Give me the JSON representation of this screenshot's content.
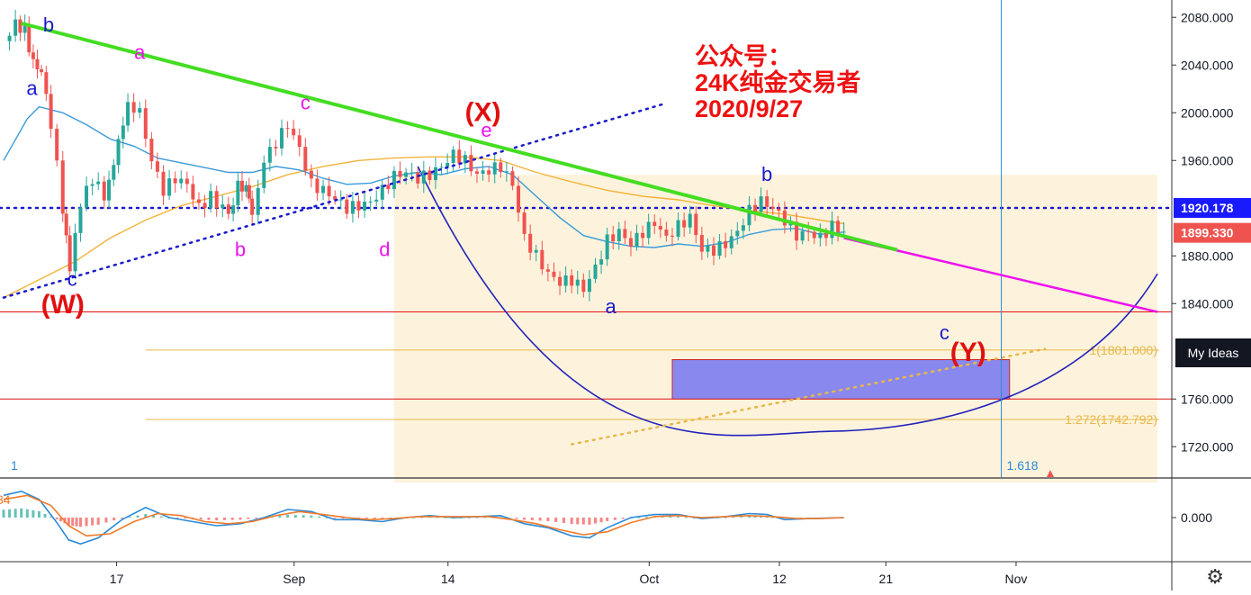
{
  "chart_data": {
    "type": "candlestick",
    "price_axis": {
      "ylim": [
        1690,
        2090
      ],
      "ticks": [
        {
          "value": 2080,
          "label": "2080.000"
        },
        {
          "value": 2040,
          "label": "2040.000"
        },
        {
          "value": 2000,
          "label": "2000.000"
        },
        {
          "value": 1960,
          "label": "1960.000"
        },
        {
          "value": 1880,
          "label": "1880.000"
        },
        {
          "value": 1840,
          "label": "1840.000"
        },
        {
          "value": 1760,
          "label": "1760.000"
        },
        {
          "value": 1720,
          "label": "1720.000"
        }
      ]
    },
    "time_axis": {
      "ticks": [
        {
          "label": "17",
          "day": 8
        },
        {
          "label": "Sep",
          "day": 23
        },
        {
          "label": "14",
          "day": 36
        },
        {
          "label": "Oct",
          "day": 53
        },
        {
          "label": "12",
          "day": 64
        },
        {
          "label": "21",
          "day": 73
        },
        {
          "label": "Nov",
          "day": 84
        }
      ]
    },
    "badges": [
      {
        "value": 1920.178,
        "label": "1920.178",
        "color": "#1a1aff"
      },
      {
        "value": 1899.33,
        "label": "1899.330",
        "color": "#ef5350"
      }
    ],
    "close_points": [
      [
        0,
        2060
      ],
      [
        1,
        2074
      ],
      [
        1.8,
        2070
      ],
      [
        2.5,
        2040
      ],
      [
        3.2,
        2032
      ],
      [
        4,
        1990
      ],
      [
        5,
        1920
      ],
      [
        5.6,
        1868
      ],
      [
        6.5,
        1925
      ],
      [
        7.5,
        1945
      ],
      [
        8.5,
        1930
      ],
      [
        9.3,
        1955
      ],
      [
        10.5,
        2010
      ],
      [
        11.5,
        2000
      ],
      [
        12.5,
        1960
      ],
      [
        13.5,
        1935
      ],
      [
        14.5,
        1945
      ],
      [
        15.5,
        1940
      ],
      [
        16.5,
        1920
      ],
      [
        17.5,
        1930
      ],
      [
        19,
        1915
      ],
      [
        19.8,
        1938
      ],
      [
        20.5,
        1935
      ],
      [
        21,
        1915
      ],
      [
        22,
        1960
      ],
      [
        23,
        1975
      ],
      [
        24,
        1990
      ],
      [
        25,
        1970
      ],
      [
        26,
        1940
      ],
      [
        27,
        1935
      ],
      [
        28,
        1928
      ],
      [
        29,
        1920
      ],
      [
        30,
        1922
      ],
      [
        31,
        1925
      ],
      [
        32,
        1935
      ],
      [
        33,
        1947
      ],
      [
        34,
        1950
      ],
      [
        35,
        1945
      ],
      [
        36,
        1948
      ],
      [
        37,
        1955
      ],
      [
        38,
        1965
      ],
      [
        39,
        1960
      ],
      [
        40,
        1948
      ],
      [
        41,
        1952
      ],
      [
        42,
        1955
      ],
      [
        43,
        1940
      ],
      [
        44,
        1895
      ],
      [
        45,
        1880
      ],
      [
        46,
        1865
      ],
      [
        47,
        1858
      ],
      [
        48,
        1860
      ],
      [
        49,
        1852
      ],
      [
        50,
        1870
      ],
      [
        51,
        1893
      ],
      [
        52,
        1900
      ],
      [
        53,
        1890
      ],
      [
        54,
        1900
      ],
      [
        55,
        1908
      ],
      [
        56,
        1895
      ],
      [
        57,
        1905
      ],
      [
        58,
        1912
      ],
      [
        59,
        1885
      ],
      [
        60,
        1885
      ],
      [
        61,
        1890
      ],
      [
        62,
        1900
      ],
      [
        63,
        1918
      ],
      [
        64,
        1926
      ],
      [
        65,
        1920
      ],
      [
        66,
        1910
      ],
      [
        67,
        1897
      ],
      [
        68,
        1900
      ],
      [
        69,
        1895
      ],
      [
        70,
        1905
      ],
      [
        71,
        1900
      ]
    ],
    "ma_blue": [
      [
        0,
        1960
      ],
      [
        2,
        1995
      ],
      [
        3,
        2005
      ],
      [
        5,
        2000
      ],
      [
        7,
        1990
      ],
      [
        9,
        1978
      ],
      [
        11,
        1972
      ],
      [
        13,
        1962
      ],
      [
        15,
        1958
      ],
      [
        17,
        1954
      ],
      [
        19,
        1950
      ],
      [
        21,
        1950
      ],
      [
        23,
        1955
      ],
      [
        25,
        1952
      ],
      [
        27,
        1945
      ],
      [
        29,
        1940
      ],
      [
        31,
        1941
      ],
      [
        33,
        1947
      ],
      [
        35,
        1950
      ],
      [
        37,
        1948
      ],
      [
        39,
        1953
      ],
      [
        41,
        1955
      ],
      [
        43,
        1948
      ],
      [
        45,
        1930
      ],
      [
        47,
        1912
      ],
      [
        49,
        1897
      ],
      [
        51,
        1892
      ],
      [
        53,
        1888
      ],
      [
        55,
        1887
      ],
      [
        57,
        1890
      ],
      [
        59,
        1888
      ],
      [
        61,
        1891
      ],
      [
        63,
        1898
      ],
      [
        65,
        1902
      ],
      [
        67,
        1903
      ],
      [
        69,
        1898
      ],
      [
        71,
        1900
      ]
    ],
    "ma_orange": [
      [
        0,
        1845
      ],
      [
        3,
        1860
      ],
      [
        6,
        1875
      ],
      [
        9,
        1895
      ],
      [
        12,
        1910
      ],
      [
        15,
        1922
      ],
      [
        18,
        1930
      ],
      [
        21,
        1938
      ],
      [
        24,
        1948
      ],
      [
        27,
        1955
      ],
      [
        30,
        1960
      ],
      [
        33,
        1962
      ],
      [
        36,
        1963
      ],
      [
        39,
        1963
      ],
      [
        42,
        1960
      ],
      [
        45,
        1950
      ],
      [
        48,
        1942
      ],
      [
        51,
        1935
      ],
      [
        54,
        1930
      ],
      [
        57,
        1927
      ],
      [
        60,
        1922
      ],
      [
        63,
        1918
      ],
      [
        66,
        1915
      ],
      [
        69,
        1910
      ],
      [
        71,
        1907
      ]
    ],
    "trendline_green": {
      "from": [
        1.5,
        2075
      ],
      "to": [
        75.5,
        1885
      ],
      "color": "#44dd22"
    },
    "trendline_magenta": {
      "from": [
        71,
        1895
      ],
      "to": [
        97.5,
        1833
      ],
      "color": "#ee11ee"
    },
    "channel_dotted": {
      "from": [
        0,
        1845
      ],
      "to": [
        56,
        2008
      ],
      "color": "#1a1acc"
    },
    "dotted_h_line": {
      "value": 1920.178,
      "color": "#1a1acc"
    },
    "dotted_orange_line": {
      "from": [
        48,
        1722
      ],
      "to": [
        88,
        1802
      ],
      "color": "#e8b84a"
    },
    "hlines_red": [
      1833,
      1760
    ],
    "fib_levels": [
      {
        "value": 1801.0,
        "label": "1(1801.000)",
        "from_day": 12
      },
      {
        "value": 1742.792,
        "label": "1.272(1742.792)",
        "from_day": 12
      }
    ],
    "zone_box": {
      "x1": 33,
      "x2": 97.5,
      "y1": 1948,
      "y2": 1690,
      "color": "#fdf3dc"
    },
    "target_box": {
      "x1": 56.5,
      "x2": 85,
      "y1": 1793,
      "y2": 1760,
      "color": "#8888ee"
    },
    "arc": {
      "x1": 35,
      "x2": 97.5,
      "bottom": 1733,
      "bottom_day": 70
    },
    "vline_day": 84.3,
    "fib_time_label": "1.618",
    "left_time_label": "1",
    "wave_labels": [
      {
        "text": "b",
        "day": 3.8,
        "price": 2068,
        "color": "#1a1acc"
      },
      {
        "text": "a",
        "day": 2.4,
        "price": 2015,
        "color": "#1a1acc"
      },
      {
        "text": "c",
        "day": 5.8,
        "price": 1855,
        "color": "#1a1acc"
      },
      {
        "text": "(W)",
        "day": 5,
        "price": 1832,
        "color": "#e01010",
        "big": true
      },
      {
        "text": "a",
        "day": 11.5,
        "price": 2045,
        "color": "#ee11ee"
      },
      {
        "text": "b",
        "day": 20,
        "price": 1880,
        "color": "#ee11ee"
      },
      {
        "text": "c",
        "day": 25.5,
        "price": 2003,
        "color": "#ee11ee"
      },
      {
        "text": "d",
        "day": 32.2,
        "price": 1880,
        "color": "#ee11ee"
      },
      {
        "text": "e",
        "day": 40.8,
        "price": 1980,
        "color": "#ee11ee"
      },
      {
        "text": "(X)",
        "day": 40.5,
        "price": 1993,
        "color": "#e01010",
        "big": true
      },
      {
        "text": "a",
        "day": 51.3,
        "price": 1832,
        "color": "#1a1acc"
      },
      {
        "text": "b",
        "day": 64.5,
        "price": 1943,
        "color": "#1a1acc"
      },
      {
        "text": "c",
        "day": 79.5,
        "price": 1810,
        "color": "#1a1acc"
      },
      {
        "text": "(Y)",
        "day": 81.5,
        "price": 1792,
        "color": "#e01010",
        "big": true
      }
    ],
    "note_lines": [
      "公众号：",
      "24K纯金交易者",
      "2020/9/27"
    ],
    "macd": {
      "zero_label": "0.000",
      "left_label": "34",
      "macd_line": [
        [
          0,
          22
        ],
        [
          1.5,
          26
        ],
        [
          3,
          18
        ],
        [
          4.5,
          -5
        ],
        [
          5.5,
          -22
        ],
        [
          6.5,
          -26
        ],
        [
          8,
          -20
        ],
        [
          10,
          -2
        ],
        [
          12,
          10
        ],
        [
          14,
          0
        ],
        [
          16,
          -4
        ],
        [
          18,
          -8
        ],
        [
          20,
          -6
        ],
        [
          22,
          0
        ],
        [
          24,
          8
        ],
        [
          26,
          6
        ],
        [
          28,
          -2
        ],
        [
          30,
          -2
        ],
        [
          32,
          -4
        ],
        [
          34,
          0
        ],
        [
          36,
          2
        ],
        [
          38,
          0
        ],
        [
          40,
          1
        ],
        [
          42,
          2
        ],
        [
          44,
          -6
        ],
        [
          46,
          -10
        ],
        [
          48,
          -18
        ],
        [
          49.5,
          -20
        ],
        [
          51,
          -10
        ],
        [
          53,
          0
        ],
        [
          55,
          3
        ],
        [
          57,
          3
        ],
        [
          59,
          -1
        ],
        [
          61,
          1
        ],
        [
          63,
          4
        ],
        [
          64.5,
          3
        ],
        [
          66,
          -2
        ],
        [
          68,
          -1
        ],
        [
          71,
          0
        ]
      ],
      "signal_line": [
        [
          0,
          18
        ],
        [
          2,
          22
        ],
        [
          4,
          12
        ],
        [
          5.5,
          -8
        ],
        [
          7,
          -18
        ],
        [
          9,
          -16
        ],
        [
          11,
          -4
        ],
        [
          13,
          4
        ],
        [
          15,
          2
        ],
        [
          17,
          -4
        ],
        [
          19,
          -6
        ],
        [
          21,
          -4
        ],
        [
          23,
          2
        ],
        [
          25,
          6
        ],
        [
          27,
          3
        ],
        [
          29,
          0
        ],
        [
          31,
          -2
        ],
        [
          33,
          -1
        ],
        [
          35,
          1
        ],
        [
          37,
          1
        ],
        [
          39,
          1
        ],
        [
          41,
          1
        ],
        [
          43,
          -2
        ],
        [
          45,
          -6
        ],
        [
          47,
          -12
        ],
        [
          49,
          -17
        ],
        [
          51,
          -14
        ],
        [
          53,
          -5
        ],
        [
          55,
          1
        ],
        [
          57,
          2
        ],
        [
          59,
          0
        ],
        [
          61,
          1
        ],
        [
          63,
          2
        ],
        [
          65,
          1
        ],
        [
          67,
          -1
        ],
        [
          69,
          -1
        ],
        [
          71,
          0
        ]
      ],
      "ylim": [
        -40,
        40
      ]
    }
  },
  "my_ideas_label": "My Ideas",
  "settings_icon": "gear-icon"
}
